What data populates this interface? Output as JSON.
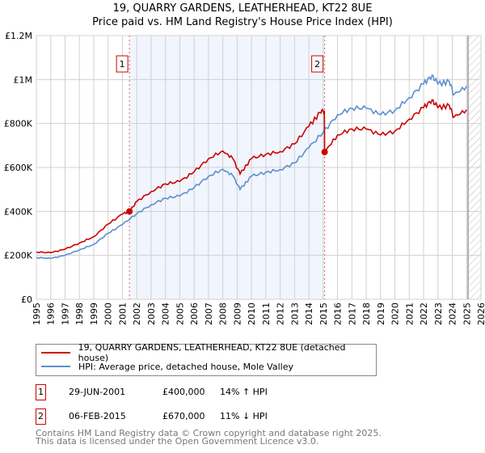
{
  "title_line1": "19, QUARRY GARDENS, LEATHERHEAD, KT22 8UE",
  "title_line2": "Price paid vs. HM Land Registry's House Price Index (HPI)",
  "chart_data": {
    "type": "line",
    "title": "19, QUARRY GARDENS, LEATHERHEAD, KT22 8UE — Price paid vs. HM Land Registry's House Price Index (HPI)",
    "xlabel": "",
    "ylabel": "",
    "xlim": [
      1995,
      2026
    ],
    "ylim": [
      0,
      1200000
    ],
    "x_ticks": [
      "1995",
      "1996",
      "1997",
      "1998",
      "1999",
      "2000",
      "2001",
      "2002",
      "2003",
      "2004",
      "2005",
      "2006",
      "2007",
      "2008",
      "2009",
      "2010",
      "2011",
      "2012",
      "2013",
      "2014",
      "2015",
      "2016",
      "2017",
      "2018",
      "2019",
      "2020",
      "2021",
      "2022",
      "2023",
      "2024",
      "2025",
      "2026"
    ],
    "y_ticks": [
      {
        "v": 0,
        "label": "£0"
      },
      {
        "v": 200000,
        "label": "£200K"
      },
      {
        "v": 400000,
        "label": "£400K"
      },
      {
        "v": 600000,
        "label": "£600K"
      },
      {
        "v": 800000,
        "label": "£800K"
      },
      {
        "v": 1000000,
        "label": "£1M"
      },
      {
        "v": 1200000,
        "label": "£1.2M"
      }
    ],
    "grid": true,
    "series": [
      {
        "name": "19, QUARRY GARDENS, LEATHERHEAD, KT22 8UE (detached house)",
        "color": "#cc0000",
        "x": [
          1995,
          1996,
          1997,
          1998,
          1999,
          2000,
          2001,
          2001.5,
          2002,
          2003,
          2004,
          2005,
          2006,
          2007,
          2008,
          2008.7,
          2009.2,
          2010,
          2011,
          2012,
          2013,
          2014,
          2014.8,
          2015.08,
          2015.1,
          2016,
          2017,
          2018,
          2019,
          2020,
          2021,
          2022,
          2022.6,
          2023,
          2023.8,
          2024.1,
          2025
        ],
        "y": [
          215000,
          212000,
          228000,
          256000,
          285000,
          342000,
          388000,
          400000,
          445000,
          490000,
          525000,
          536000,
          580000,
          640000,
          675000,
          640000,
          570000,
          640000,
          660000,
          672000,
          707000,
          787000,
          850000,
          858000,
          670000,
          748000,
          775000,
          775000,
          748000,
          765000,
          820000,
          872000,
          908000,
          872000,
          881000,
          828000,
          863000
        ]
      },
      {
        "name": "HPI: Average price, detached house, Mole Valley",
        "color": "#5b8fd0",
        "x": [
          1995,
          1996,
          1997,
          1998,
          1999,
          2000,
          2001,
          2002,
          2003,
          2004,
          2005,
          2006,
          2007,
          2008,
          2008.7,
          2009.2,
          2010,
          2011,
          2012,
          2013,
          2014,
          2015,
          2016,
          2017,
          2018,
          2019,
          2020,
          2021,
          2022,
          2022.6,
          2023,
          2023.8,
          2024.1,
          2025
        ],
        "y": [
          190000,
          186000,
          200000,
          225000,
          250000,
          300000,
          340000,
          390000,
          430000,
          460000,
          470000,
          508000,
          560000,
          592000,
          562000,
          500000,
          560000,
          578000,
          590000,
          620000,
          690000,
          760000,
          840000,
          870000,
          870000,
          840000,
          860000,
          918000,
          980000,
          1020000,
          980000,
          990000,
          930000,
          970000
        ]
      }
    ],
    "annotations": [
      {
        "label": "1",
        "x": 2001.49,
        "y": 400000
      },
      {
        "label": "2",
        "x": 2015.1,
        "y": 670000
      }
    ],
    "shaded_range": [
      2001.49,
      2015.1
    ],
    "hatched_from": 2025.1
  },
  "legend": {
    "items": [
      {
        "label": "19, QUARRY GARDENS, LEATHERHEAD, KT22 8UE (detached house)",
        "color": "#cc0000"
      },
      {
        "label": "HPI: Average price, detached house, Mole Valley",
        "color": "#5b8fd0"
      }
    ]
  },
  "sales": [
    {
      "num": "1",
      "date": "29-JUN-2001",
      "price": "£400,000",
      "hpi": "14% ↑ HPI"
    },
    {
      "num": "2",
      "date": "06-FEB-2015",
      "price": "£670,000",
      "hpi": "11% ↓ HPI"
    }
  ],
  "footer": {
    "line1": "Contains HM Land Registry data © Crown copyright and database right 2025.",
    "line2": "This data is licensed under the Open Government Licence v3.0."
  }
}
